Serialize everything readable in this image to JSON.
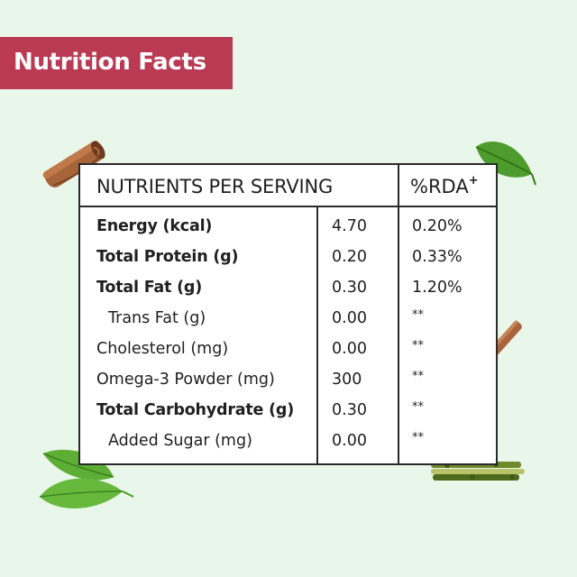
{
  "banner": {
    "title": "Nutrition Facts"
  },
  "table": {
    "header": {
      "nutrients": "NUTRIENTS PER SERVING",
      "rda": "%RDA",
      "rda_mark": "+"
    },
    "rows": [
      {
        "name": "Energy",
        "unit": "(kcal)",
        "value": "4.70",
        "rda": "0.20%",
        "bold": true,
        "indent": false
      },
      {
        "name": "Total Protein",
        "unit": "(g)",
        "value": "0.20",
        "rda": "0.33%",
        "bold": true,
        "indent": false
      },
      {
        "name": "Total Fat",
        "unit": "(g)",
        "value": "0.30",
        "rda": "1.20%",
        "bold": true,
        "indent": false
      },
      {
        "name": "Trans Fat",
        "unit": "(g)",
        "value": "0.00",
        "rda": "**",
        "bold": false,
        "indent": true
      },
      {
        "name": "Cholesterol",
        "unit": "(mg)",
        "value": "0.00",
        "rda": "**",
        "bold": false,
        "indent": false
      },
      {
        "name": "Omega-3 Powder",
        "unit": "(mg)",
        "value": "300",
        "rda": "**",
        "bold": false,
        "indent": false
      },
      {
        "name": "Total Carbohydrate",
        "unit": "(g)",
        "value": "0.30",
        "rda": "**",
        "bold": true,
        "indent": false
      },
      {
        "name": "Added Sugar",
        "unit": "(mg)",
        "value": "0.00",
        "rda": "**",
        "bold": false,
        "indent": true
      }
    ]
  },
  "decorations": [
    "cinnamon-stick-icon",
    "leaf-icon",
    "herb-sprig-icon"
  ],
  "colors": {
    "banner": "#b93a52",
    "background": "#e9f6ea",
    "border": "#2a2a2a"
  }
}
